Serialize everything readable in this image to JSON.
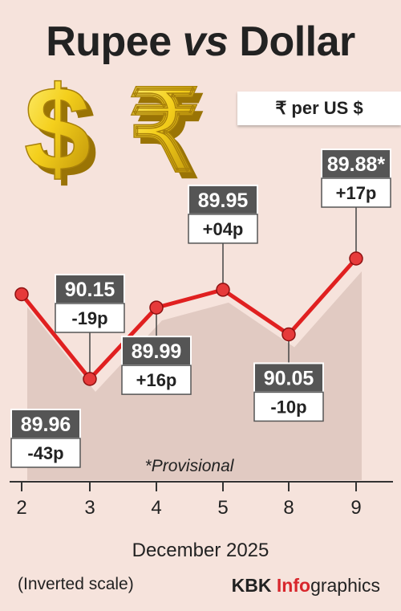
{
  "header": {
    "title_part1": "Rupee ",
    "title_vs": "vs",
    "title_part2": " Dollar",
    "unit_label": "₹ per US $"
  },
  "icons": [
    "dollar-symbol-icon",
    "rupee-symbol-icon"
  ],
  "colors": {
    "background": "#f6e3dc",
    "line": "#e02020",
    "point": "#e63a3a",
    "value_box": "#555555",
    "brand_accent": "#d8262c"
  },
  "chart_data": {
    "type": "line",
    "inverted_scale": true,
    "categories": [
      "2",
      "3",
      "4",
      "5",
      "8",
      "9"
    ],
    "values": [
      89.96,
      90.15,
      89.99,
      89.95,
      90.05,
      89.88
    ],
    "value_labels": [
      "89.96",
      "90.15",
      "89.99",
      "89.95",
      "90.05",
      "89.88*"
    ],
    "change_labels": [
      "-43p",
      "-19p",
      "+16p",
      "+04p",
      "-10p",
      "+17p"
    ],
    "label_positions": [
      "below",
      "above",
      "below",
      "above",
      "below",
      "above"
    ],
    "annotation": "*Provisional",
    "xlabel": "December 2025",
    "scale_note": "(Inverted scale)",
    "ylim": [
      89.85,
      90.2
    ]
  },
  "footer": {
    "brand_main": "KBK ",
    "brand_accent": "Info",
    "brand_rest": "graphics"
  }
}
